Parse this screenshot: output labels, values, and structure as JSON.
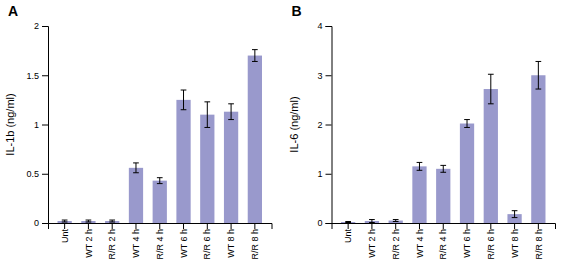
{
  "chart_data": [
    {
      "type": "bar",
      "title": "A",
      "ylabel": "IL-1b (ng/ml)",
      "categories": [
        "Unt",
        "WT 2 h",
        "R/R 2 h",
        "WT 4 h",
        "R/R 4 h",
        "WT 6 h",
        "R/R 6 h",
        "WT 8 h",
        "R/R 8 h"
      ],
      "values": [
        0.02,
        0.02,
        0.02,
        0.56,
        0.43,
        1.25,
        1.1,
        1.13,
        1.7
      ],
      "errors": [
        0.01,
        0.01,
        0.01,
        0.05,
        0.03,
        0.1,
        0.13,
        0.08,
        0.06
      ],
      "color": "#9999cc",
      "ylim": [
        0,
        2.0
      ],
      "yticks": [
        0,
        0.5,
        1,
        1.5,
        2
      ]
    },
    {
      "type": "bar",
      "title": "B",
      "ylabel": "IL-6 (ng/ml)",
      "categories": [
        "Unt",
        "WT 2 h",
        "R/R 2 h",
        "WT 4 h",
        "R/R 4 h",
        "WT 6 h",
        "R/R 6 h",
        "WT 8 h",
        "R/R 8 h"
      ],
      "values": [
        0.02,
        0.04,
        0.05,
        1.15,
        1.1,
        2.02,
        2.72,
        0.18,
        3.0
      ],
      "errors": [
        0.01,
        0.03,
        0.02,
        0.08,
        0.07,
        0.08,
        0.3,
        0.07,
        0.28
      ],
      "color": "#9999cc",
      "ylim": [
        0,
        4.0
      ],
      "yticks": [
        0,
        1,
        2,
        3,
        4
      ]
    }
  ]
}
